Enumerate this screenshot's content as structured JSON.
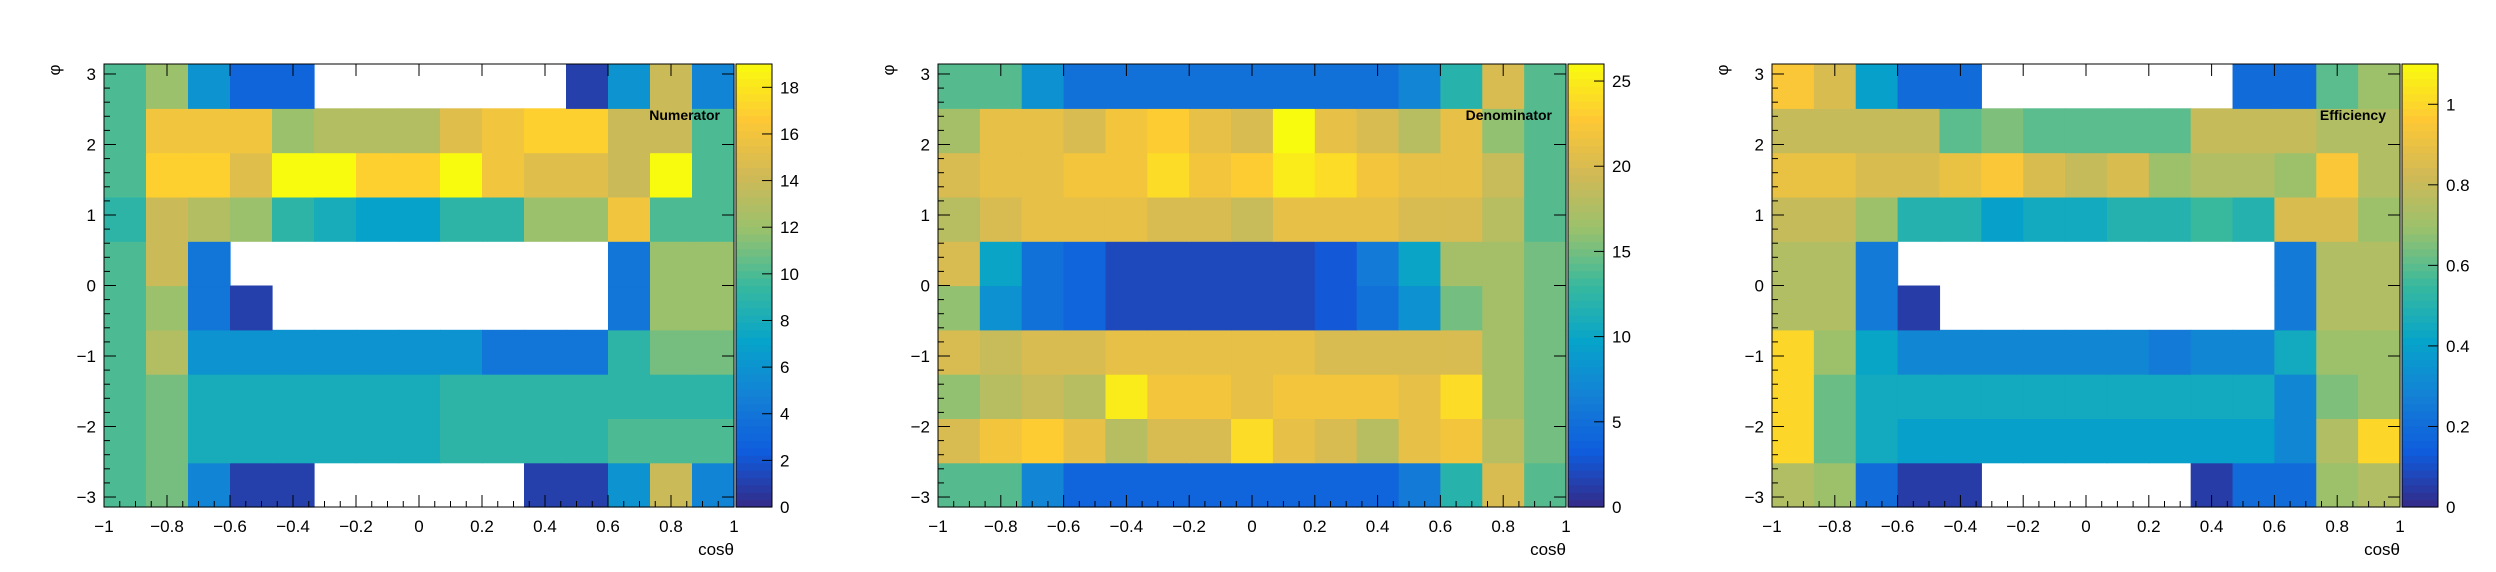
{
  "chart_data": [
    {
      "type": "heatmap",
      "title": "Numerator",
      "xlabel": "cosθ",
      "ylabel": "φ",
      "xlim": [
        -1,
        1
      ],
      "ylim": [
        -3.14159,
        3.14159
      ],
      "x_ticks": [
        "−1",
        "−0.8",
        "−0.6",
        "−0.4",
        "−0.2",
        "0",
        "0.2",
        "0.4",
        "0.6",
        "0.8",
        "1"
      ],
      "x_tick_values": [
        -1,
        -0.8,
        -0.6,
        -0.4,
        -0.2,
        0,
        0.2,
        0.4,
        0.6,
        0.8,
        1
      ],
      "y_ticks": [
        "−3",
        "−2",
        "−1",
        "0",
        "1",
        "2",
        "3"
      ],
      "y_tick_values": [
        -3,
        -2,
        -1,
        0,
        1,
        2,
        3
      ],
      "zlim": [
        0,
        19
      ],
      "z_ticks": [
        "0",
        "2",
        "4",
        "6",
        "8",
        "10",
        "12",
        "14",
        "16",
        "18"
      ],
      "z_tick_values": [
        0,
        2,
        4,
        6,
        8,
        10,
        12,
        14,
        16,
        18
      ],
      "nx": 15,
      "ny": 10,
      "values": [
        [
          10,
          11,
          5,
          1,
          1,
          0,
          0,
          0,
          0,
          0,
          1,
          1,
          6,
          14,
          5
        ],
        [
          10,
          11,
          8,
          8,
          8,
          8,
          8,
          8,
          9,
          9,
          9,
          9,
          10,
          10,
          10
        ],
        [
          10,
          11,
          8,
          8,
          8,
          8,
          8,
          8,
          9,
          9,
          9,
          9,
          9,
          9,
          9
        ],
        [
          10,
          13,
          6,
          6,
          6,
          6,
          6,
          6,
          6,
          4,
          4,
          4,
          9,
          11,
          11
        ],
        [
          10,
          12,
          4,
          1,
          0,
          0,
          0,
          0,
          0,
          0,
          0,
          0,
          4,
          12,
          12
        ],
        [
          10,
          14,
          4,
          0,
          0,
          0,
          0,
          0,
          0,
          0,
          0,
          0,
          4,
          12,
          12
        ],
        [
          9,
          14,
          13,
          12,
          9,
          8,
          7,
          7,
          9,
          9,
          12,
          12,
          16,
          10,
          10
        ],
        [
          10,
          17,
          17,
          15,
          19,
          19,
          17,
          17,
          19,
          16,
          15,
          15,
          14,
          19,
          10
        ],
        [
          10,
          16,
          16,
          16,
          12,
          13,
          13,
          13,
          15,
          16,
          17,
          17,
          14,
          14,
          10
        ],
        [
          10,
          12,
          6,
          3,
          3,
          0,
          0,
          0,
          0,
          0,
          0,
          1,
          6,
          14,
          5
        ]
      ]
    },
    {
      "type": "heatmap",
      "title": "Denominator",
      "xlabel": "cosθ",
      "ylabel": "φ",
      "xlim": [
        -1,
        1
      ],
      "ylim": [
        -3.14159,
        3.14159
      ],
      "x_ticks": [
        "−1",
        "−0.8",
        "−0.6",
        "−0.4",
        "−0.2",
        "0",
        "0.2",
        "0.4",
        "0.6",
        "0.8",
        "1"
      ],
      "x_tick_values": [
        -1,
        -0.8,
        -0.6,
        -0.4,
        -0.2,
        0,
        0.2,
        0.4,
        0.6,
        0.8,
        1
      ],
      "y_ticks": [
        "−3",
        "−2",
        "−1",
        "0",
        "1",
        "2",
        "3"
      ],
      "y_tick_values": [
        -3,
        -2,
        -1,
        0,
        1,
        2,
        3
      ],
      "zlim": [
        0,
        26
      ],
      "z_ticks": [
        "0",
        "5",
        "10",
        "15",
        "20",
        "25"
      ],
      "z_tick_values": [
        0,
        5,
        10,
        15,
        20,
        25
      ],
      "nx": 15,
      "ny": 10,
      "values": [
        [
          14,
          14,
          7,
          4,
          4,
          4,
          4,
          4,
          4,
          4,
          4,
          6,
          12,
          20,
          14
        ],
        [
          20,
          22,
          23,
          21,
          18,
          20,
          20,
          24,
          21,
          20,
          18,
          21,
          22,
          18,
          15
        ],
        [
          16,
          18,
          19,
          18,
          25,
          22,
          22,
          21,
          22,
          22,
          22,
          21,
          24,
          17,
          15
        ],
        [
          20,
          19,
          20,
          20,
          21,
          21,
          21,
          21,
          21,
          20,
          20,
          20,
          20,
          17,
          15
        ],
        [
          16,
          8,
          5,
          4,
          2,
          2,
          2,
          2,
          2,
          3,
          5,
          8,
          15,
          17,
          15
        ],
        [
          20,
          10,
          5,
          4,
          2,
          2,
          2,
          2,
          2,
          3,
          6,
          10,
          17,
          17,
          15
        ],
        [
          18,
          20,
          21,
          21,
          21,
          20,
          20,
          19,
          21,
          21,
          21,
          20,
          20,
          18,
          14
        ],
        [
          20,
          21,
          21,
          22,
          22,
          24,
          22,
          23,
          25,
          24,
          22,
          21,
          21,
          19,
          14
        ],
        [
          17,
          21,
          21,
          20,
          22,
          23,
          21,
          20,
          26,
          21,
          20,
          18,
          21,
          16,
          14
        ],
        [
          14,
          14,
          8,
          5,
          5,
          5,
          5,
          5,
          5,
          5,
          5,
          7,
          12,
          20,
          14
        ]
      ]
    },
    {
      "type": "heatmap",
      "title": "Efficiency",
      "xlabel": "cosθ",
      "ylabel": "φ",
      "xlim": [
        -1,
        1
      ],
      "ylim": [
        -3.14159,
        3.14159
      ],
      "x_ticks": [
        "−1",
        "−0.8",
        "−0.6",
        "−0.4",
        "−0.2",
        "0",
        "0.2",
        "0.4",
        "0.6",
        "0.8",
        "1"
      ],
      "x_tick_values": [
        -1,
        -0.8,
        -0.6,
        -0.4,
        -0.2,
        0,
        0.2,
        0.4,
        0.6,
        0.8,
        1
      ],
      "y_ticks": [
        "−3",
        "−2",
        "−1",
        "0",
        "1",
        "2",
        "3"
      ],
      "y_tick_values": [
        -3,
        -2,
        -1,
        0,
        1,
        2,
        3
      ],
      "zlim": [
        0,
        1.1
      ],
      "z_ticks": [
        "0",
        "0.2",
        "0.4",
        "0.6",
        "0.8",
        "1"
      ],
      "z_tick_values": [
        0,
        0.2,
        0.4,
        0.6,
        0.8,
        1
      ],
      "nx": 15,
      "ny": 10,
      "values": [
        [
          0.75,
          0.7,
          0.2,
          0.05,
          0.05,
          0,
          0,
          0,
          0,
          0,
          0.05,
          0.2,
          0.2,
          0.7,
          0.75
        ],
        [
          1.0,
          0.62,
          0.45,
          0.4,
          0.4,
          0.4,
          0.4,
          0.4,
          0.4,
          0.4,
          0.4,
          0.4,
          0.3,
          0.75,
          1.0
        ],
        [
          1.0,
          0.62,
          0.45,
          0.45,
          0.45,
          0.45,
          0.45,
          0.45,
          0.45,
          0.45,
          0.45,
          0.45,
          0.3,
          0.65,
          0.7
        ],
        [
          1.0,
          0.7,
          0.42,
          0.3,
          0.3,
          0.3,
          0.3,
          0.3,
          0.3,
          0.25,
          0.3,
          0.3,
          0.45,
          0.7,
          0.7
        ],
        [
          0.75,
          0.75,
          0.25,
          0.05,
          0,
          0,
          0,
          0,
          0,
          0,
          0,
          0,
          0.25,
          0.75,
          0.75
        ],
        [
          0.75,
          0.75,
          0.25,
          0,
          0,
          0,
          0,
          0,
          0,
          0,
          0,
          0,
          0.25,
          0.75,
          0.75
        ],
        [
          0.8,
          0.8,
          0.7,
          0.5,
          0.5,
          0.4,
          0.45,
          0.45,
          0.5,
          0.5,
          0.55,
          0.5,
          0.85,
          0.85,
          0.7
        ],
        [
          0.9,
          0.9,
          0.85,
          0.85,
          0.9,
          0.95,
          0.85,
          0.8,
          0.85,
          0.7,
          0.75,
          0.75,
          0.7,
          0.95,
          0.75
        ],
        [
          0.8,
          0.8,
          0.8,
          0.8,
          0.6,
          0.65,
          0.6,
          0.6,
          0.6,
          0.6,
          0.8,
          0.8,
          0.8,
          0.75,
          0.75
        ],
        [
          0.95,
          0.85,
          0.4,
          0.2,
          0.2,
          0,
          0,
          0,
          0,
          0,
          0,
          0.2,
          0.2,
          0.6,
          0.7
        ]
      ]
    }
  ]
}
